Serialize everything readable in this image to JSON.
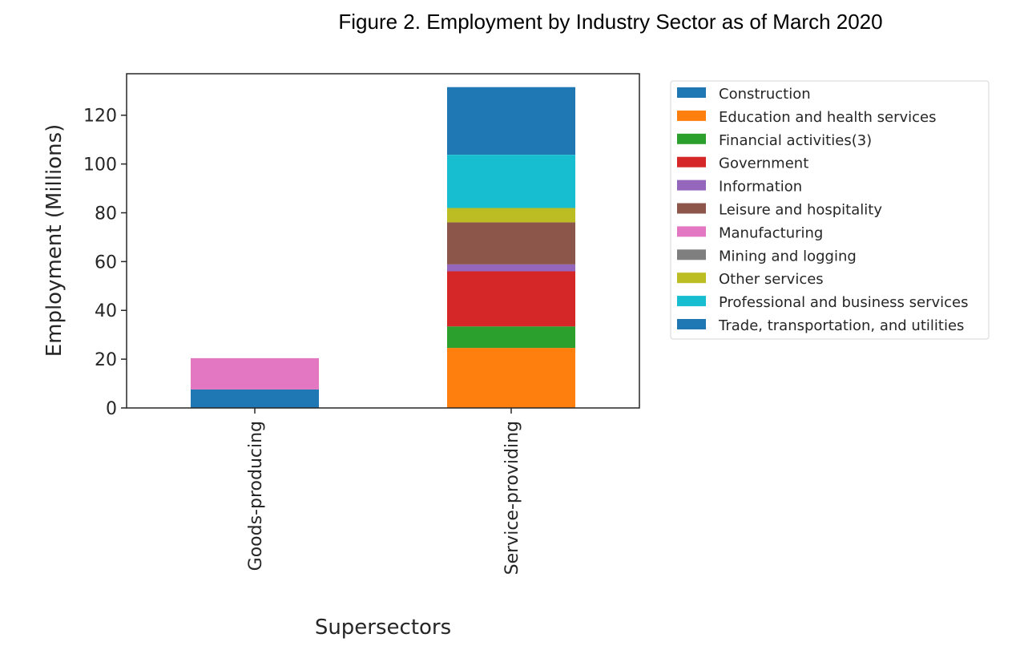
{
  "chart_data": {
    "type": "bar",
    "stacked": true,
    "title": "Figure 2. Employment by Industry Sector as of March 2020",
    "xlabel": "Supersectors",
    "ylabel": "Employment (Millions)",
    "categories": [
      "Goods-producing",
      "Service-providing"
    ],
    "ylim": [
      0,
      137
    ],
    "yticks": [
      0,
      20,
      40,
      60,
      80,
      100,
      120
    ],
    "grid": false,
    "legend_position": "outside-right",
    "series": [
      {
        "name": "Construction",
        "color": "#1f77b4",
        "values": [
          7.6,
          0
        ]
      },
      {
        "name": "Education and health services",
        "color": "#ff7f0e",
        "values": [
          0,
          24.6
        ]
      },
      {
        "name": "Financial activities(3)",
        "color": "#2ca02c",
        "values": [
          0,
          8.8
        ]
      },
      {
        "name": "Government",
        "color": "#d62728",
        "values": [
          0,
          22.6
        ]
      },
      {
        "name": "Information",
        "color": "#9467bd",
        "values": [
          0,
          2.9
        ]
      },
      {
        "name": "Leisure and hospitality",
        "color": "#8c564b",
        "values": [
          0,
          17.2
        ]
      },
      {
        "name": "Manufacturing",
        "color": "#e377c2",
        "values": [
          12.8,
          0
        ]
      },
      {
        "name": "Mining and logging",
        "color": "#7f7f7f",
        "values": [
          0.0,
          0
        ]
      },
      {
        "name": "Other services",
        "color": "#bcbd22",
        "values": [
          0,
          5.9
        ]
      },
      {
        "name": "Professional and business services",
        "color": "#17becf",
        "values": [
          0,
          21.8
        ]
      },
      {
        "name": "Trade, transportation, and utilities",
        "color": "#1f77b4",
        "values": [
          0,
          27.7
        ]
      }
    ]
  }
}
